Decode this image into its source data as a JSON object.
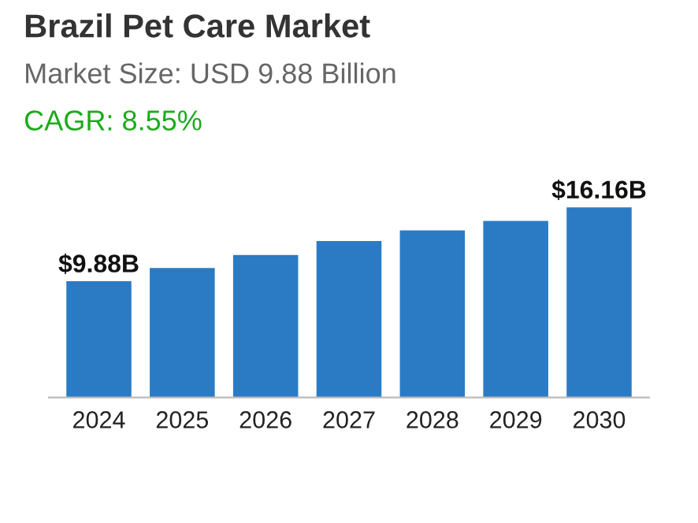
{
  "chart_data": {
    "type": "bar",
    "title": "Brazil Pet Care Market",
    "subtitle": "Market Size: USD 9.88 Billion",
    "annotations": [
      "CAGR: 8.55%"
    ],
    "categories": [
      "2024",
      "2025",
      "2026",
      "2027",
      "2028",
      "2029",
      "2030"
    ],
    "values": [
      9.88,
      11.0,
      12.1,
      13.3,
      14.2,
      15.0,
      16.16
    ],
    "value_labels": [
      "$9.88B",
      null,
      null,
      null,
      null,
      null,
      "$16.16B"
    ],
    "color": "#2b7bc4",
    "grid": false,
    "legend": false
  }
}
